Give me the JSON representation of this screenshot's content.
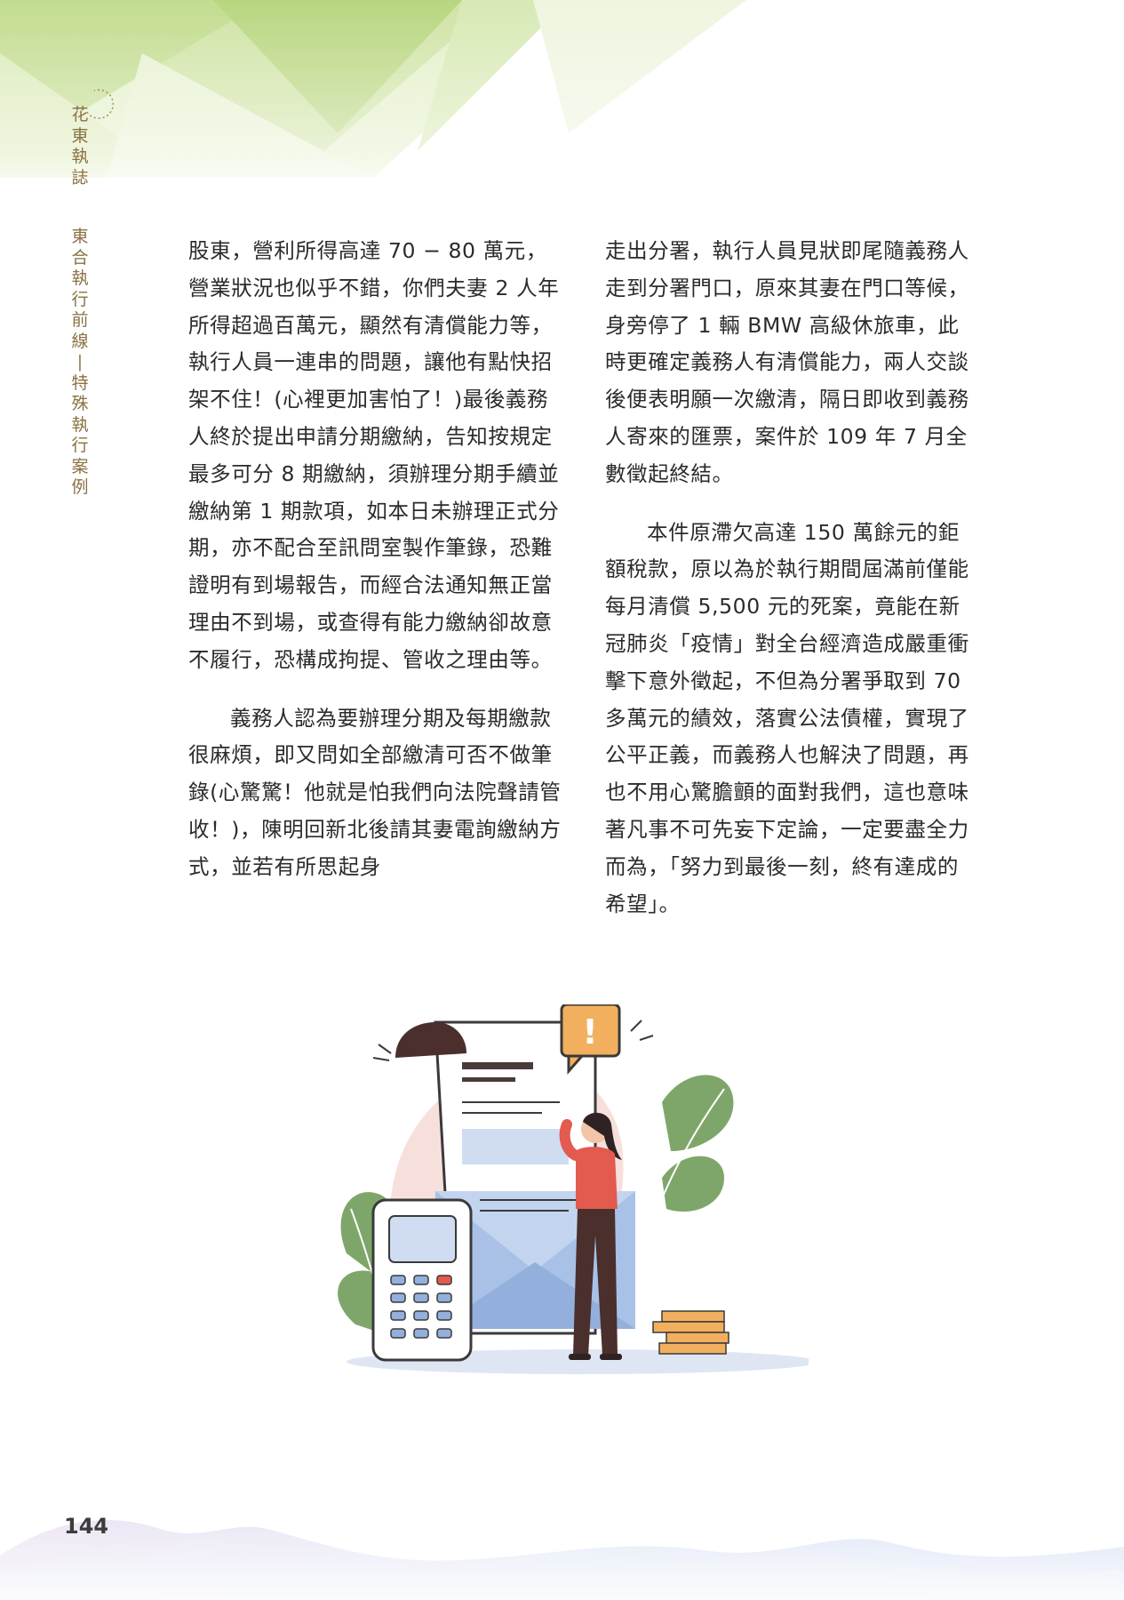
{
  "header": {
    "magazine_title": [
      "花",
      "東",
      "執",
      "誌"
    ],
    "section_title": [
      "東",
      "合",
      "執",
      "行",
      "前",
      "線",
      "|",
      "特",
      "殊",
      "執",
      "行",
      "案",
      "例"
    ]
  },
  "body": {
    "left_column": [
      "股東，營利所得高達 70 − 80 萬元，營業狀況也似乎不錯，你們夫妻 2 人年所得超過百萬元，顯然有清償能力等，執行人員一連串的問題，讓他有點快招架不住！(心裡更加害怕了！)最後義務人終於提出申請分期繳納，告知按規定最多可分 8 期繳納，須辦理分期手續並繳納第 1 期款項，如本日未辦理正式分期，亦不配合至訊問室製作筆錄，恐難證明有到場報告，而經合法通知無正當理由不到場，或查得有能力繳納卻故意不履行，恐構成拘提、管收之理由等。",
      "義務人認為要辦理分期及每期繳款很麻煩，即又問如全部繳清可否不做筆錄(心驚驚！他就是怕我們向法院聲請管收！)，陳明回新北後請其妻電詢繳納方式，並若有所思起身"
    ],
    "right_column": [
      "走出分署，執行人員見狀即尾隨義務人走到分署門口，原來其妻在門口等候，身旁停了 1 輛 BMW 高級休旅車，此時更確定義務人有清償能力，兩人交談後便表明願一次繳清，隔日即收到義務人寄來的匯票，案件於 109 年 7 月全數徵起終結。",
      "本件原滯欠高達 150 萬餘元的鉅額稅款，原以為於執行期間屆滿前僅能每月清償 5,500 元的死案，竟能在新冠肺炎「疫情」對全台經濟造成嚴重衝擊下意外徵起，不但為分署爭取到 70 多萬元的績效，落實公法債權，實現了公平正義，而義務人也解決了問題，再也不用心驚膽顫的面對我們，這也意味著凡事不可先妄下定論，一定要盡全力而為，「努力到最後一刻，終有達成的希望」。"
    ]
  },
  "illustration": {
    "alert_symbol": "!"
  },
  "footer": {
    "page_number": "144"
  },
  "colors": {
    "header_gold": "#8a7142",
    "green_top": "#bcd98a",
    "leaf_green": "#7fa66a",
    "shirt_red": "#e35a4f",
    "pants_brown": "#4a2f2c",
    "envelope_blue": "#a9c1e6",
    "alert_orange": "#f2b05e"
  }
}
